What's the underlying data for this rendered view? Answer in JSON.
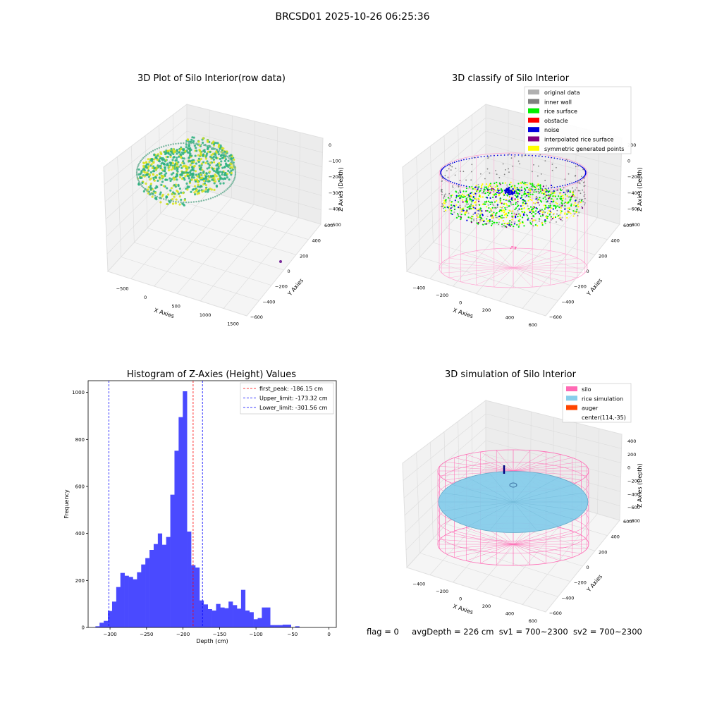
{
  "suptitle": "BRCSD01 2025-10-26 06:25:36",
  "footer": {
    "flag": "flag = 0",
    "avg_depth": "avgDepth = 226 cm",
    "sv1": "sv1 = 700~2300",
    "sv2": "sv2 = 700~2300"
  },
  "panel1": {
    "title": "3D Plot of Silo Interior(row data)",
    "xlabel": "X Axies",
    "ylabel": "Y Axies",
    "zlabel": "Z Axies (Depth)",
    "x_ticks": [
      "−500",
      "0",
      "500",
      "1000",
      "1500"
    ],
    "y_ticks": [
      "−600",
      "−400",
      "−200",
      "0",
      "200",
      "400",
      "600"
    ],
    "z_ticks": [
      "0",
      "−100",
      "−200",
      "−300",
      "−400",
      "−500"
    ],
    "colors": {
      "low": "#2bb07f",
      "high": "#d8e219"
    }
  },
  "panel2": {
    "title": "3D classify of Silo Interior",
    "xlabel": "X Axies",
    "ylabel": "Y Axies",
    "zlabel": "Z Axies (Depth)",
    "x_ticks": [
      "−400",
      "−200",
      "0",
      "200",
      "400",
      "600"
    ],
    "y_ticks": [
      "−600",
      "−400",
      "−200",
      "0",
      "200",
      "400",
      "600"
    ],
    "z_ticks": [
      "200",
      "0",
      "−200",
      "−400",
      "−600",
      "−800"
    ],
    "legend": [
      {
        "label": "original data",
        "color": "#b0b0b0"
      },
      {
        "label": "inner wall",
        "color": "#808080"
      },
      {
        "label": "rice surface",
        "color": "#00ee00"
      },
      {
        "label": "obstacle",
        "color": "#ff0000"
      },
      {
        "label": "noise",
        "color": "#0000dd"
      },
      {
        "label": "interpolated rice surface",
        "color": "#800080"
      },
      {
        "label": "symmetric generated points",
        "color": "#ffff00"
      }
    ]
  },
  "panel4": {
    "title": "3D simulation of Silo Interior",
    "xlabel": "X Axies",
    "ylabel": "Y Axies",
    "zlabel": "Z Axies (Depth)",
    "x_ticks": [
      "−400",
      "−200",
      "0",
      "200",
      "400",
      "600"
    ],
    "y_ticks": [
      "−600",
      "−400",
      "−200",
      "0",
      "200",
      "400",
      "600"
    ],
    "z_ticks": [
      "400",
      "200",
      "0",
      "−200",
      "−400",
      "−600",
      "−800"
    ],
    "legend": [
      {
        "label": "silo",
        "color": "#ff69b4"
      },
      {
        "label": "rice simulation",
        "color": "#87ceeb"
      },
      {
        "label": "auger",
        "color": "#ff4500"
      },
      {
        "label": "center(114,-35)",
        "color": ""
      }
    ]
  },
  "chart_data": {
    "type": "bar",
    "title": "Histogram of Z-Axies (Height) Values",
    "xlabel": "Depth (cm)",
    "ylabel": "Frequency",
    "xlim": [
      -330,
      10
    ],
    "ylim": [
      0,
      1050
    ],
    "x_ticks": [
      -300,
      -250,
      -200,
      -150,
      -100,
      -50,
      0
    ],
    "y_ticks": [
      0,
      200,
      400,
      600,
      800,
      1000
    ],
    "bar_color": "#4a4aff",
    "bin_width": 5.7,
    "bin_start": -320,
    "values": [
      5,
      20,
      28,
      70,
      110,
      172,
      232,
      220,
      215,
      205,
      235,
      268,
      295,
      330,
      355,
      400,
      352,
      385,
      565,
      752,
      895,
      1005,
      408,
      265,
      255,
      115,
      98,
      78,
      72,
      100,
      85,
      82,
      110,
      95,
      80,
      160,
      72,
      65,
      35,
      40,
      85,
      85,
      10,
      10,
      10,
      12,
      12,
      0,
      5
    ],
    "lines": [
      {
        "label": "first_peak: -186.15 cm",
        "x": -186.15,
        "color": "#ff0000"
      },
      {
        "label": "Upper_limit: -173.32 cm",
        "x": -173.32,
        "color": "#0000ff"
      },
      {
        "label": "Lower_limit: -301.56 cm",
        "x": -301.56,
        "color": "#0000ff"
      }
    ],
    "legend_position": "top-right"
  }
}
